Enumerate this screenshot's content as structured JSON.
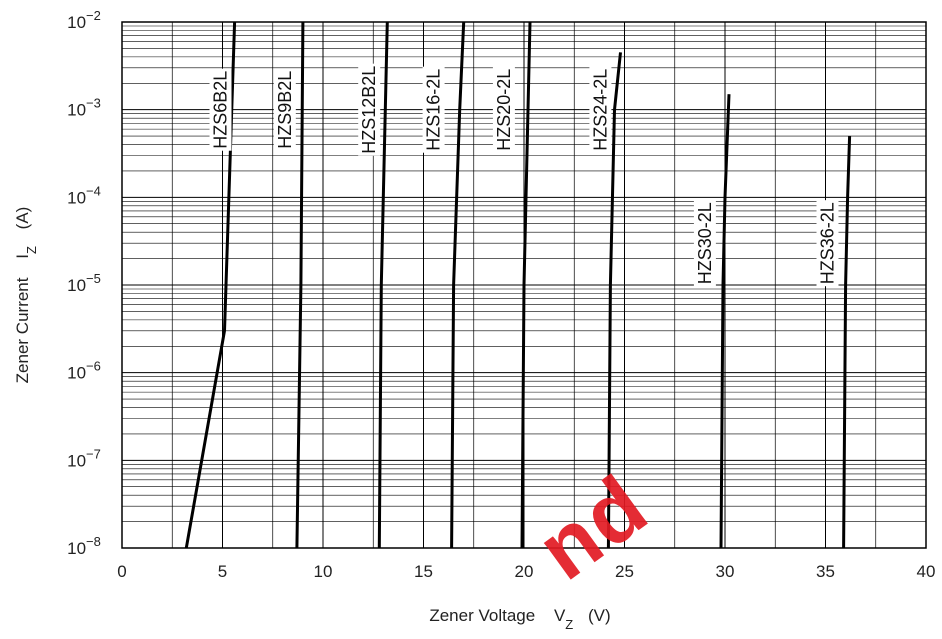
{
  "chart_data": {
    "type": "line",
    "xlabel": "Zener Voltage",
    "xlabel_symbol": "V",
    "xlabel_sub": "Z",
    "xlabel_unit": "(V)",
    "ylabel": "Zener Current",
    "ylabel_symbol": "I",
    "ylabel_sub": "Z",
    "ylabel_unit": "(A)",
    "xlim": [
      0,
      40
    ],
    "ylim_exp": [
      -8,
      -2
    ],
    "y_scale": "log",
    "x_ticks": [
      "0",
      "5",
      "10",
      "15",
      "20",
      "25",
      "30",
      "35",
      "40"
    ],
    "y_ticks_base": "10",
    "y_ticks_exp": [
      "−8",
      "−7",
      "−6",
      "−5",
      "−4",
      "−3",
      "−2"
    ],
    "grid": true,
    "series": [
      {
        "name": "HZS6B2L",
        "points": [
          [
            3.2,
            1e-08
          ],
          [
            5.1,
            3e-06
          ],
          [
            5.6,
            0.01
          ]
        ],
        "label_x": 4.9,
        "label_y": 0.001
      },
      {
        "name": "HZS9B2L",
        "points": [
          [
            8.7,
            1e-08
          ],
          [
            8.9,
            1e-05
          ],
          [
            9.0,
            0.01
          ]
        ],
        "label_x": 8.1,
        "label_y": 0.001
      },
      {
        "name": "HZS12B2L",
        "points": [
          [
            12.8,
            1e-08
          ],
          [
            12.9,
            1e-05
          ],
          [
            13.2,
            0.01
          ]
        ],
        "label_x": 12.3,
        "label_y": 0.001
      },
      {
        "name": "HZS16-2L",
        "points": [
          [
            16.4,
            1e-08
          ],
          [
            16.5,
            1e-05
          ],
          [
            16.8,
            0.001
          ],
          [
            17.0,
            0.01
          ]
        ],
        "label_x": 15.5,
        "label_y": 0.001
      },
      {
        "name": "HZS20-2L",
        "points": [
          [
            19.9,
            1e-08
          ],
          [
            20.0,
            1e-05
          ],
          [
            20.2,
            0.001
          ],
          [
            20.3,
            0.01
          ]
        ],
        "label_x": 19.0,
        "label_y": 0.001
      },
      {
        "name": "HZS24-2L",
        "points": [
          [
            24.2,
            1e-08
          ],
          [
            24.3,
            1e-05
          ],
          [
            24.5,
            0.001
          ],
          [
            24.8,
            0.0045
          ]
        ],
        "label_x": 23.8,
        "label_y": 0.001
      },
      {
        "name": "HZS30-2L",
        "points": [
          [
            29.8,
            1e-08
          ],
          [
            29.9,
            1e-05
          ],
          [
            30.0,
            0.0001
          ],
          [
            30.2,
            0.0015
          ]
        ],
        "label_x": 29.0,
        "label_y": 3e-05
      },
      {
        "name": "HZS36-2L",
        "points": [
          [
            35.9,
            1e-08
          ],
          [
            36.0,
            1e-05
          ],
          [
            36.1,
            0.0001
          ],
          [
            36.2,
            0.0005
          ]
        ],
        "label_x": 35.1,
        "label_y": 3e-05
      }
    ]
  },
  "watermark": {
    "text": "nd",
    "color": "#e21b23"
  }
}
